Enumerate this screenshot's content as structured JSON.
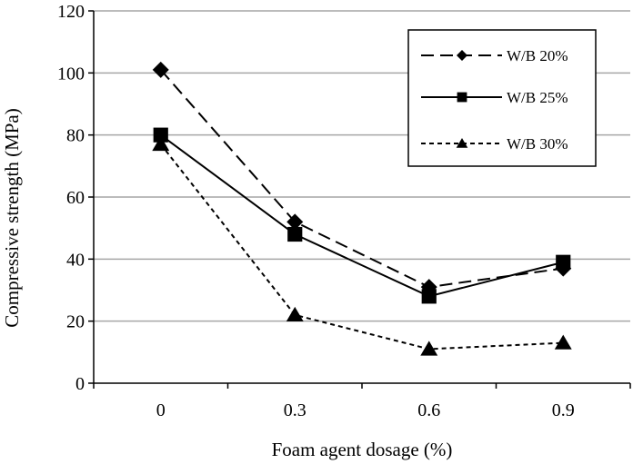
{
  "chart_data": {
    "type": "line",
    "title": "",
    "xlabel": "Foam agent dosage (%)",
    "ylabel": "Compressive strength (MPa)",
    "categories": [
      "0",
      "0.3",
      "0.6",
      "0.9"
    ],
    "ylim": [
      0,
      120
    ],
    "yticks": [
      0,
      20,
      40,
      60,
      80,
      100,
      120
    ],
    "ytick_labels": [
      "0",
      "20",
      "40",
      "60",
      "80",
      "100",
      "120"
    ],
    "grid": "horizontal",
    "legend_position": "top-right",
    "series": [
      {
        "name": "W/B 20%",
        "values": [
          101,
          52,
          31,
          37
        ],
        "line_style": "long-dash",
        "marker": "diamond",
        "color": "#000000"
      },
      {
        "name": "W/B 25%",
        "values": [
          80,
          48,
          28,
          39
        ],
        "line_style": "solid",
        "marker": "square",
        "color": "#000000"
      },
      {
        "name": "W/B 30%",
        "values": [
          77,
          22,
          11,
          13
        ],
        "line_style": "short-dash",
        "marker": "triangle",
        "color": "#000000"
      }
    ],
    "colors": {
      "grid": "#a6a6a6",
      "axis": "#000000",
      "line": "#000000"
    }
  }
}
